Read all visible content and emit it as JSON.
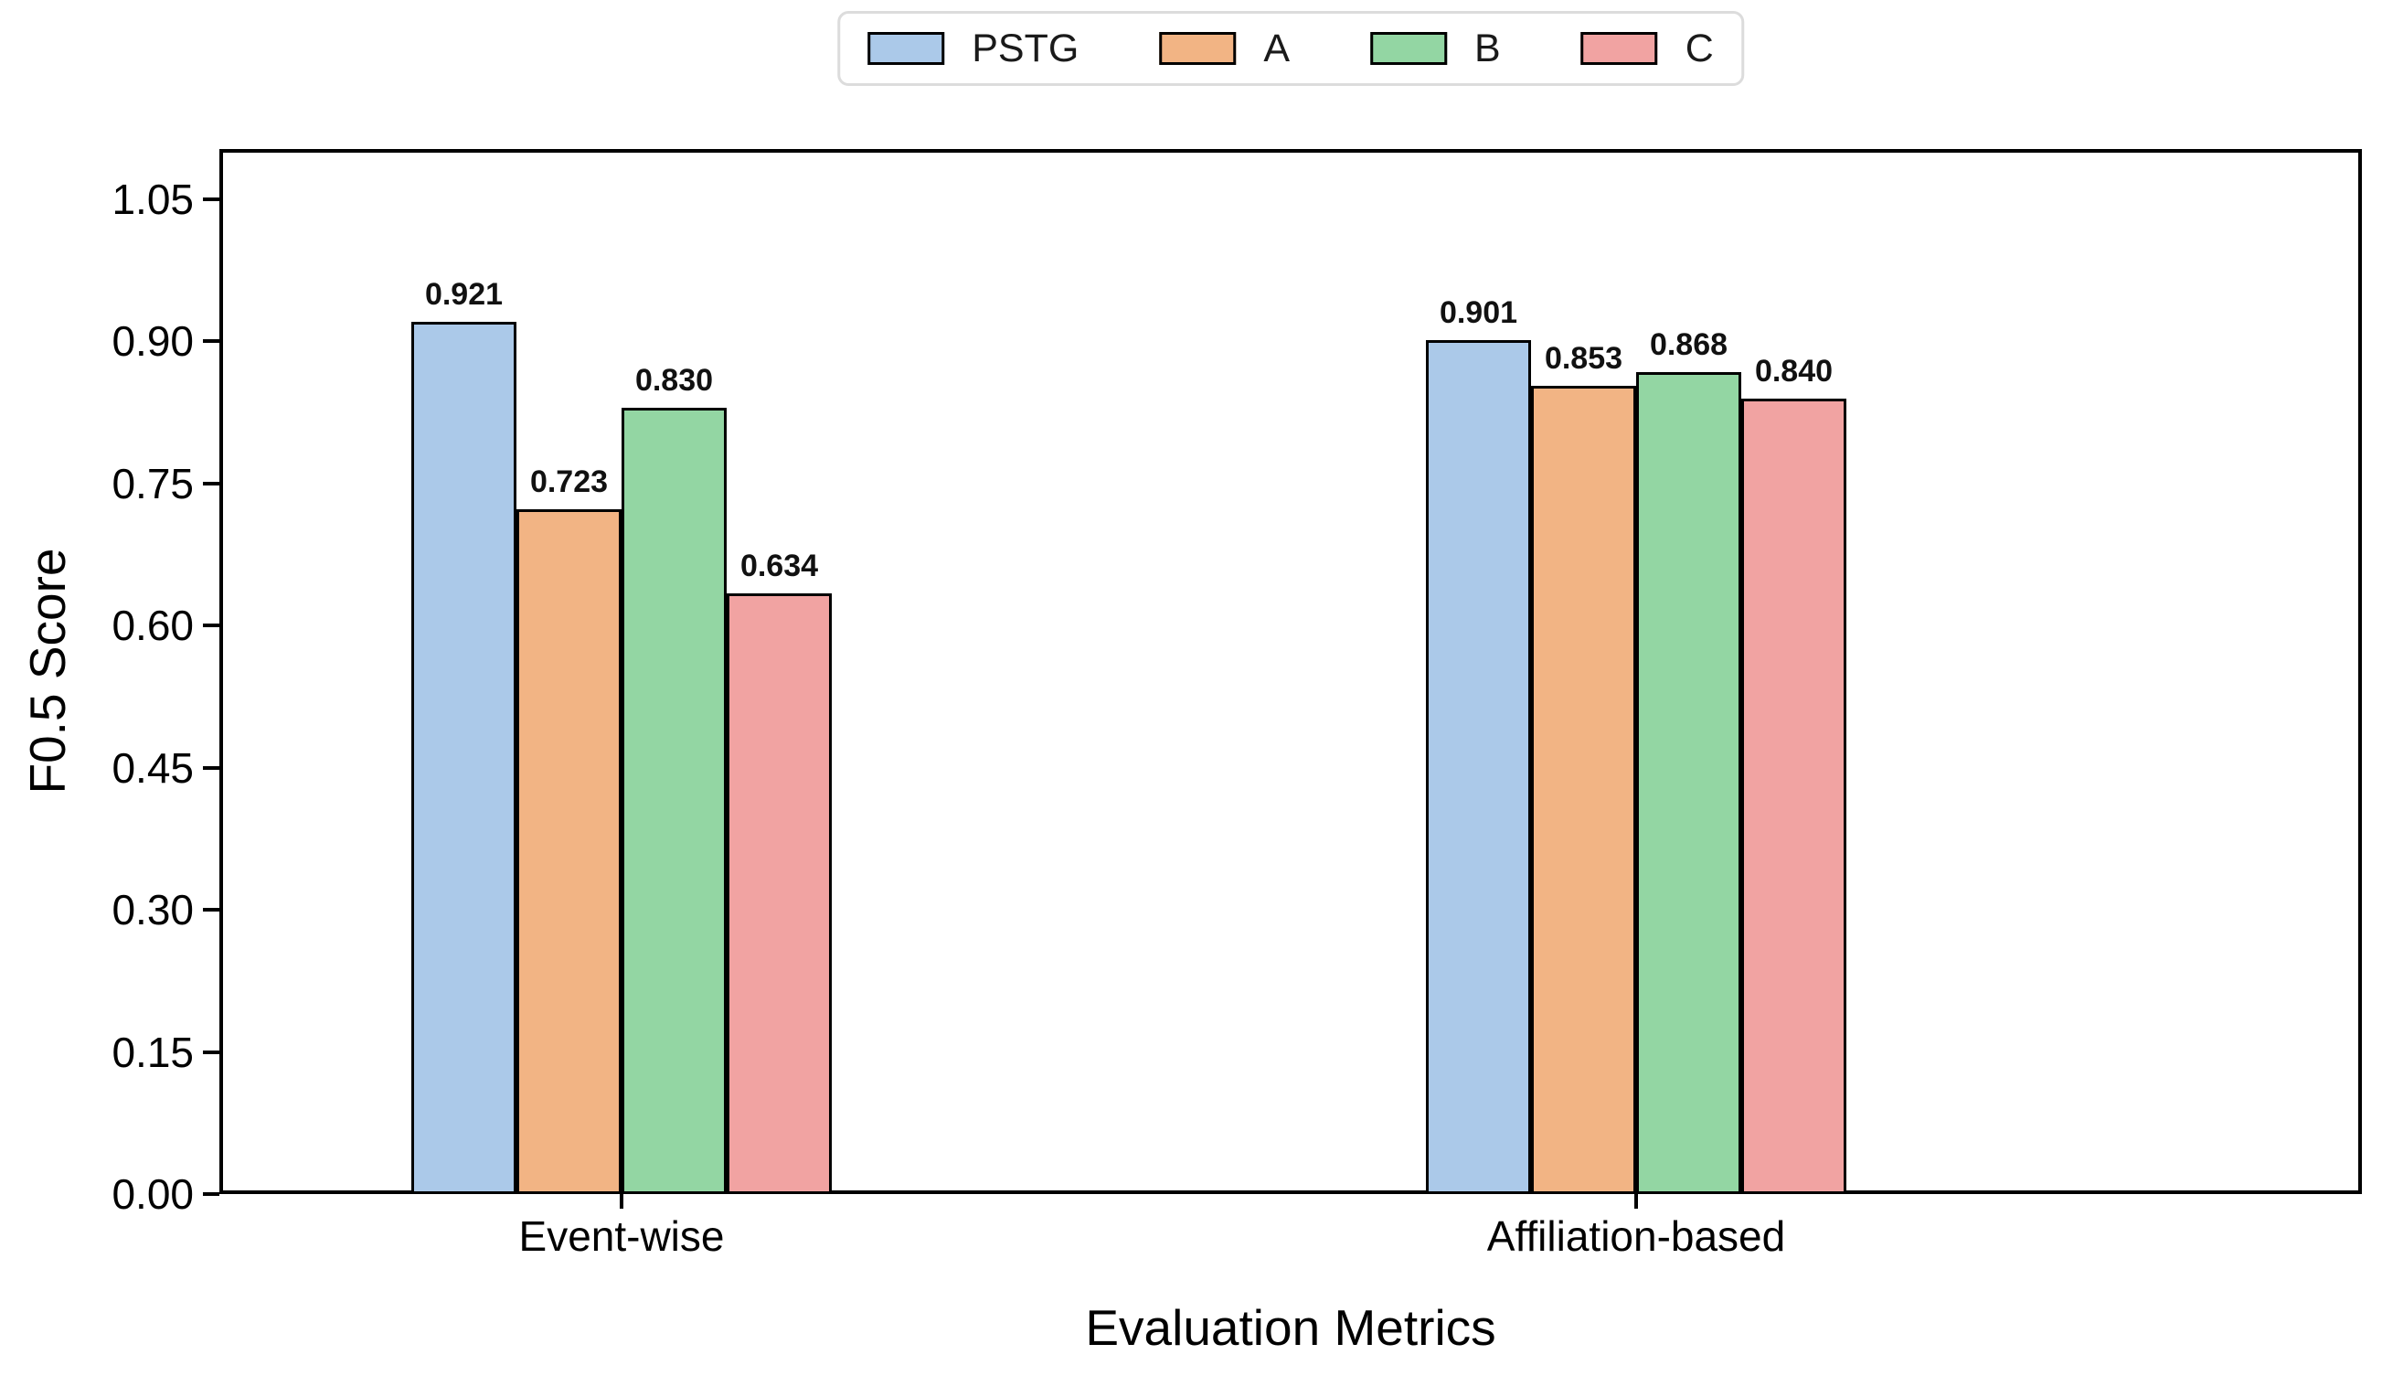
{
  "chart_data": {
    "type": "bar",
    "title": "",
    "xlabel": "Evaluation Metrics",
    "ylabel": "F0.5 Score",
    "categories": [
      "Event-wise",
      "Affiliation-based"
    ],
    "series": [
      {
        "name": "PSTG",
        "color": "#abc9e9",
        "values": [
          0.921,
          0.901
        ],
        "labels": [
          "0.921",
          "0.901"
        ]
      },
      {
        "name": "A",
        "color": "#f2b484",
        "values": [
          0.723,
          0.853
        ],
        "labels": [
          "0.723",
          "0.853"
        ]
      },
      {
        "name": "B",
        "color": "#93d6a3",
        "values": [
          0.83,
          0.868
        ],
        "labels": [
          "0.830",
          "0.868"
        ]
      },
      {
        "name": "C",
        "color": "#f1a3a2",
        "values": [
          0.634,
          0.84
        ],
        "labels": [
          "0.634",
          "0.840"
        ]
      }
    ],
    "yticks": [
      0.0,
      0.15,
      0.3,
      0.45,
      0.6,
      0.75,
      0.9,
      1.05
    ],
    "ytick_labels": [
      "0.00",
      "0.15",
      "0.30",
      "0.45",
      "0.60",
      "0.75",
      "0.90",
      "1.05"
    ],
    "ylim": [
      0,
      1.103
    ],
    "grid": false,
    "legend_position": "top-center",
    "bar_edge_color": "#000000",
    "value_label_color": "#111111",
    "background": "#ffffff"
  }
}
